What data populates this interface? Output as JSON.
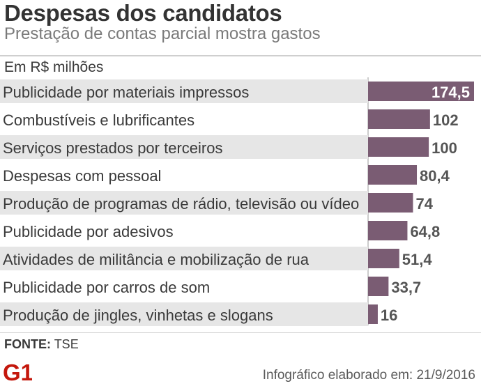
{
  "header": {
    "title": "Despesas dos candidatos",
    "subtitle": "Prestação de contas parcial mostra gastos",
    "unit_label": "Em R$ milhões"
  },
  "footer": {
    "source_label": "FONTE:",
    "source_value": "TSE",
    "logo_text": "G1",
    "credit": "Infográfico elaborado em: 21/9/2016"
  },
  "colors": {
    "bar": "#7a5c73",
    "row_shade": "#e6e6e6",
    "value_text": "#555555",
    "logo": "#c4170c"
  },
  "chart_data": {
    "type": "bar",
    "orientation": "horizontal",
    "title": "Despesas dos candidatos",
    "subtitle": "Prestação de contas parcial mostra gastos",
    "unit": "Em R$ milhões",
    "categories": [
      "Publicidade por materiais impressos",
      "Combustíveis e lubrificantes",
      "Serviços prestados por terceiros",
      "Despesas com pessoal",
      "Produção de programas de rádio, televisão ou vídeo",
      "Publicidade por adesivos",
      "Atividades de militância e mobilização de rua",
      "Publicidade por carros de som",
      "Produção de jingles, vinhetas e slogans"
    ],
    "values": [
      174.5,
      102,
      100,
      80.4,
      74,
      64.8,
      51.4,
      33.7,
      16
    ],
    "value_labels": [
      "174,5",
      "102",
      "100",
      "80,4",
      "74",
      "64,8",
      "51,4",
      "33,7",
      "16"
    ],
    "xlim": [
      0,
      174.5
    ],
    "grid": false,
    "legend": "none"
  }
}
